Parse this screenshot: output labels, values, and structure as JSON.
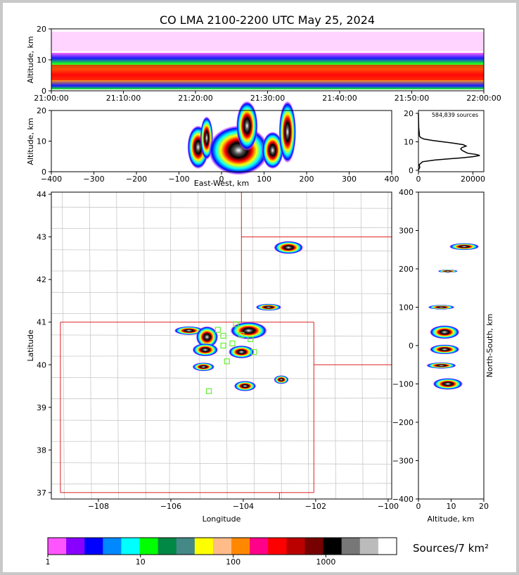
{
  "title": "CO LMA 2100-2200 UTC May 25, 2024",
  "colors": {
    "frame": "#c8c8c8",
    "state_border": "#e02020",
    "county_line": "#c8c8c8",
    "station_marker": "#66ee33",
    "colorbar": [
      "#ff55ff",
      "#8800ff",
      "#0000ff",
      "#0088ff",
      "#00ffff",
      "#00ff00",
      "#008844",
      "#448888",
      "#ffff00",
      "#ffbb88",
      "#ff8800",
      "#ff0088",
      "#ff0000",
      "#bb0000",
      "#770000",
      "#000000",
      "#777777",
      "#bbbbbb",
      "#ffffff"
    ]
  },
  "chart_data": [
    {
      "type": "heatmap",
      "name": "time-height",
      "ylabel": "Altitude, km",
      "y_ticks": [
        "0",
        "10",
        "20"
      ],
      "x_ticks": [
        "21:00:00",
        "21:10:00",
        "21:20:00",
        "21:30:00",
        "21:40:00",
        "21:50:00",
        "22:00:00"
      ],
      "xlim": [
        "21:00:00",
        "22:00:00"
      ],
      "ylim": [
        0,
        20
      ]
    },
    {
      "type": "heatmap",
      "name": "east-west-height",
      "xlabel": "East-West, km",
      "ylabel": "Altitude, km",
      "x_ticks": [
        "−400",
        "−300",
        "−200",
        "−100",
        "0",
        "100",
        "200",
        "300",
        "400"
      ],
      "y_ticks": [
        "0",
        "10",
        "20"
      ],
      "xlim": [
        -400,
        400
      ],
      "ylim": [
        0,
        20
      ],
      "cells": [
        {
          "x": -55,
          "y": 8,
          "w": 25,
          "h": 7
        },
        {
          "x": -35,
          "y": 11,
          "w": 15,
          "h": 7
        },
        {
          "x": 40,
          "y": 7,
          "w": 70,
          "h": 8
        },
        {
          "x": 60,
          "y": 15,
          "w": 25,
          "h": 8
        },
        {
          "x": 120,
          "y": 7,
          "w": 25,
          "h": 6
        },
        {
          "x": 155,
          "y": 13,
          "w": 20,
          "h": 10
        }
      ]
    },
    {
      "type": "line",
      "name": "altitude-histogram",
      "annotation": "584,839 sources",
      "x_ticks": [
        "0",
        "20000"
      ],
      "y_ticks": [
        "0",
        "10",
        "20"
      ],
      "xlim": [
        0,
        24000
      ],
      "ylim": [
        -0.5,
        21
      ],
      "x": [
        0,
        200,
        500,
        400,
        300,
        1500,
        6000,
        11000,
        16000,
        20000,
        22500,
        21000,
        18000,
        17000,
        16000,
        15500,
        16000,
        17500,
        16500,
        13000,
        9000,
        5000,
        2000,
        800,
        400,
        300,
        100,
        0
      ],
      "y": [
        0,
        0.5,
        1,
        1.5,
        2,
        3,
        3.6,
        4,
        4.4,
        4.8,
        5.2,
        5.6,
        6,
        6.5,
        7,
        7.5,
        8,
        8.5,
        9,
        9.5,
        10,
        10.5,
        11,
        11.5,
        12,
        13,
        15,
        20
      ]
    },
    {
      "type": "heatmap",
      "name": "plan-view",
      "xlabel": "Longitude",
      "ylabel": "Latitude",
      "x_ticks": [
        "−108",
        "−106",
        "−104",
        "−102",
        "−100"
      ],
      "y_ticks": [
        "37",
        "38",
        "39",
        "40",
        "41",
        "42",
        "43",
        "44"
      ],
      "xlim": [
        -109.3,
        -99.9
      ],
      "ylim": [
        36.85,
        44.05
      ],
      "cells": [
        {
          "x": -105.5,
          "y": 40.8,
          "w": 0.4,
          "h": 0.1
        },
        {
          "x": -105.0,
          "y": 40.65,
          "w": 0.3,
          "h": 0.25
        },
        {
          "x": -105.05,
          "y": 40.35,
          "w": 0.35,
          "h": 0.15
        },
        {
          "x": -105.1,
          "y": 39.95,
          "w": 0.3,
          "h": 0.1
        },
        {
          "x": -103.85,
          "y": 40.8,
          "w": 0.5,
          "h": 0.2
        },
        {
          "x": -104.05,
          "y": 40.3,
          "w": 0.35,
          "h": 0.15
        },
        {
          "x": -103.95,
          "y": 39.5,
          "w": 0.3,
          "h": 0.12
        },
        {
          "x": -103.3,
          "y": 41.35,
          "w": 0.35,
          "h": 0.08
        },
        {
          "x": -102.75,
          "y": 42.75,
          "w": 0.4,
          "h": 0.15
        },
        {
          "x": -102.95,
          "y": 39.65,
          "w": 0.2,
          "h": 0.1
        }
      ],
      "stations": [
        [
          -104.7,
          40.82
        ],
        [
          -104.55,
          40.68
        ],
        [
          -104.2,
          40.95
        ],
        [
          -104.3,
          40.5
        ],
        [
          -104.55,
          40.45
        ],
        [
          -103.8,
          40.6
        ],
        [
          -103.7,
          40.3
        ],
        [
          -104.45,
          40.08
        ],
        [
          -104.05,
          40.7
        ],
        [
          -104.95,
          39.38
        ]
      ]
    },
    {
      "type": "heatmap",
      "name": "north-south-height",
      "xlabel": "Altitude, km",
      "ylabel": "North-South, km",
      "x_ticks": [
        "0",
        "10",
        "20"
      ],
      "y_ticks": [
        "−400",
        "−300",
        "−200",
        "−100",
        "0",
        "100",
        "200",
        "300",
        "400"
      ],
      "xlim": [
        0,
        20
      ],
      "ylim": [
        -400,
        400
      ],
      "cells": [
        {
          "x": 7,
          "y": 100,
          "w": 8,
          "h": 12
        },
        {
          "x": 8,
          "y": 35,
          "w": 9,
          "h": 35
        },
        {
          "x": 8,
          "y": -10,
          "w": 9,
          "h": 25
        },
        {
          "x": 7,
          "y": -52,
          "w": 9,
          "h": 16
        },
        {
          "x": 9,
          "y": -100,
          "w": 9,
          "h": 30
        },
        {
          "x": 14,
          "y": 258,
          "w": 9,
          "h": 18
        },
        {
          "x": 9,
          "y": 194,
          "w": 6,
          "h": 8
        }
      ]
    },
    {
      "type": "bar",
      "name": "colorbar",
      "title": "Sources/7 km²",
      "tick_labels": [
        "1",
        "10",
        "100",
        "1000"
      ],
      "xlim": [
        1,
        5800
      ],
      "log": true
    }
  ]
}
